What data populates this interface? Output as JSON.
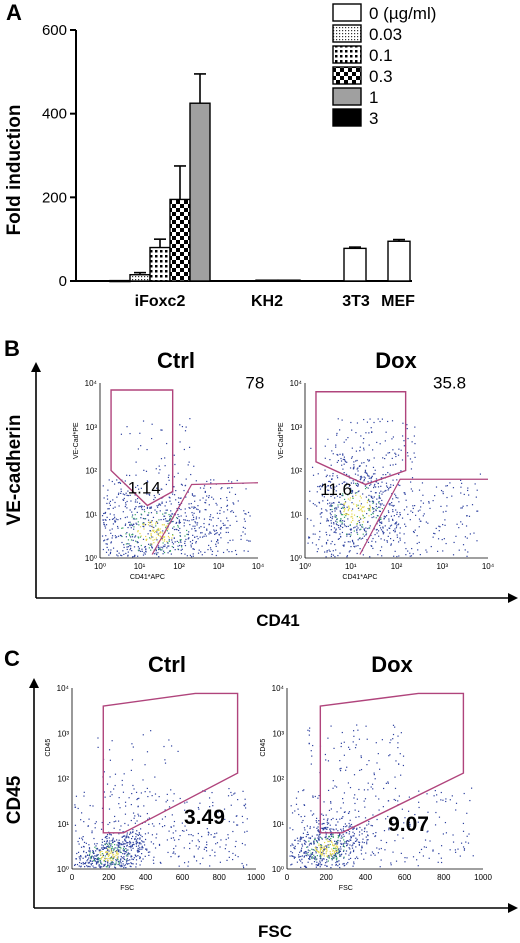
{
  "panels": {
    "a": "A",
    "b": "B",
    "c": "C"
  },
  "chart_data": [
    {
      "type": "bar",
      "panel": "A",
      "ylabel": "Fold induction",
      "ylim": [
        0,
        600
      ],
      "yticks": [
        "0",
        "200",
        "400",
        "600"
      ],
      "legend_placement": "top-right",
      "legend": [
        {
          "label": "0 (µg/ml)",
          "pattern": "white"
        },
        {
          "label": "0.03",
          "pattern": "fine-dots"
        },
        {
          "label": "0.1",
          "pattern": "dots"
        },
        {
          "label": "0.3",
          "pattern": "checker"
        },
        {
          "label": "1",
          "pattern": "gray"
        },
        {
          "label": "3",
          "pattern": "black"
        }
      ],
      "groups": [
        {
          "name": "iFoxc2",
          "bars": [
            {
              "dose": "0",
              "value": 1,
              "error": 0
            },
            {
              "dose": "0.03",
              "value": 15,
              "error": 5
            },
            {
              "dose": "0.1",
              "value": 80,
              "error": 20
            },
            {
              "dose": "0.3",
              "value": 195,
              "error": 80
            },
            {
              "dose": "1",
              "value": 425,
              "error": 70
            }
          ]
        },
        {
          "name": "KH2",
          "bars": [
            {
              "dose": "0",
              "value": 2,
              "error": 0
            },
            {
              "dose": "3",
              "value": 2,
              "error": 0
            }
          ]
        },
        {
          "name": "3T3",
          "bars": [
            {
              "dose": "0",
              "value": 78,
              "error": 3
            }
          ]
        },
        {
          "name": "MEF",
          "bars": [
            {
              "dose": "0",
              "value": 95,
              "error": 4
            }
          ]
        }
      ]
    },
    {
      "type": "scatter",
      "panel": "B",
      "title": "Ctrl",
      "xlabel": "CD41*APC",
      "ylabel": "VE-Cad*PE",
      "xticks": [
        "10⁰",
        "10¹",
        "10²",
        "10³",
        "10⁴"
      ],
      "yticks": [
        "10⁰",
        "10¹",
        "10²",
        "10³",
        "10⁴"
      ],
      "gates": [
        {
          "label": "1.14"
        },
        {
          "label": "78"
        }
      ]
    },
    {
      "type": "scatter",
      "panel": "B",
      "title": "Dox",
      "xlabel": "CD41*APC",
      "ylabel": "VE-Cad*PE",
      "xticks": [
        "10⁰",
        "10¹",
        "10²",
        "10³",
        "10⁴"
      ],
      "yticks": [
        "10⁰",
        "10¹",
        "10²",
        "10³",
        "10⁴"
      ],
      "gates": [
        {
          "label": "11.6"
        },
        {
          "label": "35.8"
        }
      ]
    },
    {
      "type": "scatter",
      "panel": "C",
      "title": "Ctrl",
      "xlabel": "FSC",
      "ylabel": "CD45",
      "xticks": [
        "0",
        "200",
        "400",
        "600",
        "800",
        "1000"
      ],
      "yticks": [
        "10⁰",
        "10¹",
        "10²",
        "10³",
        "10⁴"
      ],
      "gates": [
        {
          "label": "3.49"
        }
      ]
    },
    {
      "type": "scatter",
      "panel": "C",
      "title": "Dox",
      "xlabel": "FSC",
      "ylabel": "CD45",
      "xticks": [
        "0",
        "200",
        "400",
        "600",
        "800",
        "1000"
      ],
      "yticks": [
        "10⁰",
        "10¹",
        "10²",
        "10³",
        "10⁴"
      ],
      "gates": [
        {
          "label": "9.07"
        }
      ]
    }
  ],
  "panel_b_axes": {
    "y": "VE-cadherin",
    "x": "CD41"
  },
  "panel_c_axes": {
    "y": "CD45",
    "x": "FSC"
  },
  "colors": {
    "gate": "#b0447c",
    "dot_blue": "#2b3f9e",
    "dot_yellow": "#e4d84a",
    "gray_bar": "#a0a0a0"
  }
}
